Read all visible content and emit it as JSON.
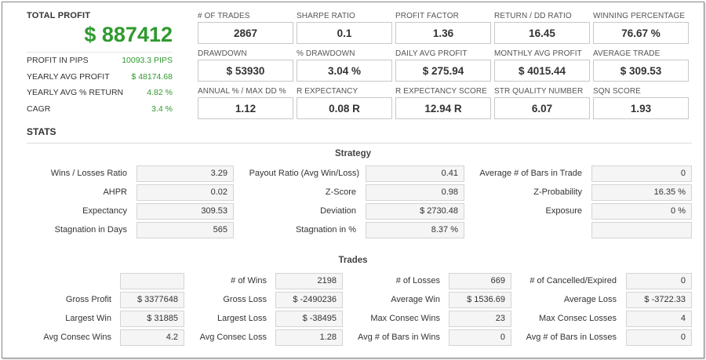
{
  "summary": {
    "total_profit_label": "TOTAL PROFIT",
    "total_profit_value": "$ 887412",
    "rows": [
      {
        "label": "PROFIT IN PIPS",
        "value": "10093.3 PIPS"
      },
      {
        "label": "YEARLY AVG PROFIT",
        "value": "$ 48174.68"
      },
      {
        "label": "YEARLY AVG % RETURN",
        "value": "4.82 %"
      },
      {
        "label": "CAGR",
        "value": "3.4 %"
      }
    ]
  },
  "metrics": [
    [
      {
        "label": "# OF TRADES",
        "value": "2867"
      },
      {
        "label": "SHARPE RATIO",
        "value": "0.1"
      },
      {
        "label": "PROFIT FACTOR",
        "value": "1.36"
      },
      {
        "label": "RETURN / DD RATIO",
        "value": "16.45"
      },
      {
        "label": "WINNING PERCENTAGE",
        "value": "76.67 %"
      }
    ],
    [
      {
        "label": "DRAWDOWN",
        "value": "$ 53930"
      },
      {
        "label": "% DRAWDOWN",
        "value": "3.04 %"
      },
      {
        "label": "DAILY AVG PROFIT",
        "value": "$ 275.94"
      },
      {
        "label": "MONTHLY AVG PROFIT",
        "value": "$ 4015.44"
      },
      {
        "label": "AVERAGE TRADE",
        "value": "$ 309.53"
      }
    ],
    [
      {
        "label": "ANNUAL % / MAX DD %",
        "value": "1.12"
      },
      {
        "label": "R EXPECTANCY",
        "value": "0.08 R"
      },
      {
        "label": "R EXPECTANCY SCORE",
        "value": "12.94 R"
      },
      {
        "label": "STR QUALITY NUMBER",
        "value": "6.07"
      },
      {
        "label": "SQN SCORE",
        "value": "1.93"
      }
    ]
  ],
  "stats_title": "STATS",
  "strategy": {
    "title": "Strategy",
    "rows": [
      [
        {
          "label": "Wins / Losses Ratio",
          "value": "3.29"
        },
        {
          "label": "Payout Ratio (Avg Win/Loss)",
          "value": "0.41"
        },
        {
          "label": "Average # of Bars in Trade",
          "value": "0"
        }
      ],
      [
        {
          "label": "AHPR",
          "value": "0.02"
        },
        {
          "label": "Z-Score",
          "value": "0.98"
        },
        {
          "label": "Z-Probability",
          "value": "16.35 %"
        }
      ],
      [
        {
          "label": "Expectancy",
          "value": "309.53"
        },
        {
          "label": "Deviation",
          "value": "$ 2730.48"
        },
        {
          "label": "Exposure",
          "value": "0 %"
        }
      ],
      [
        {
          "label": "Stagnation in Days",
          "value": "565"
        },
        {
          "label": "Stagnation in %",
          "value": "8.37 %"
        },
        {
          "label": "",
          "value": ""
        }
      ]
    ]
  },
  "trades": {
    "title": "Trades",
    "rows": [
      [
        {
          "label": "",
          "value": ""
        },
        {
          "label": "# of Wins",
          "value": "2198"
        },
        {
          "label": "# of Losses",
          "value": "669"
        },
        {
          "label": "# of Cancelled/Expired",
          "value": "0"
        }
      ],
      [
        {
          "label": "Gross Profit",
          "value": "$ 3377648"
        },
        {
          "label": "Gross Loss",
          "value": "$ -2490236"
        },
        {
          "label": "Average Win",
          "value": "$ 1536.69"
        },
        {
          "label": "Average Loss",
          "value": "$ -3722.33"
        }
      ],
      [
        {
          "label": "Largest Win",
          "value": "$ 31885"
        },
        {
          "label": "Largest Loss",
          "value": "$ -38495"
        },
        {
          "label": "Max Consec Wins",
          "value": "23"
        },
        {
          "label": "Max Consec Losses",
          "value": "4"
        }
      ],
      [
        {
          "label": "Avg Consec Wins",
          "value": "4.2"
        },
        {
          "label": "Avg Consec Loss",
          "value": "1.28"
        },
        {
          "label": "Avg # of Bars in Wins",
          "value": "0"
        },
        {
          "label": "Avg # of Bars in Losses",
          "value": "0"
        }
      ]
    ]
  },
  "colors": {
    "profit_green": "#2f9a2f"
  }
}
